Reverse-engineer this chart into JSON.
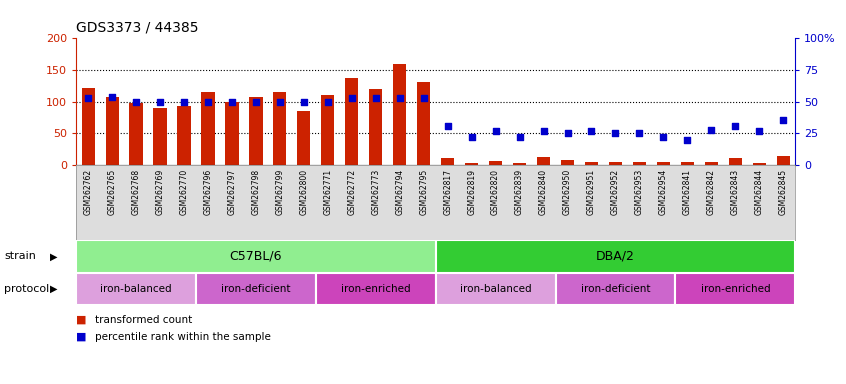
{
  "title": "GDS3373 / 44385",
  "samples": [
    "GSM262762",
    "GSM262765",
    "GSM262768",
    "GSM262769",
    "GSM262770",
    "GSM262796",
    "GSM262797",
    "GSM262798",
    "GSM262799",
    "GSM262800",
    "GSM262771",
    "GSM262772",
    "GSM262773",
    "GSM262794",
    "GSM262795",
    "GSM262817",
    "GSM262819",
    "GSM262820",
    "GSM262839",
    "GSM262840",
    "GSM262950",
    "GSM262951",
    "GSM262952",
    "GSM262953",
    "GSM262954",
    "GSM262841",
    "GSM262842",
    "GSM262843",
    "GSM262844",
    "GSM262845"
  ],
  "red_values": [
    122,
    107,
    98,
    90,
    94,
    115,
    100,
    107,
    116,
    86,
    111,
    138,
    120,
    160,
    131,
    11,
    3,
    6,
    4,
    13,
    8,
    5,
    5,
    5,
    5,
    5,
    5,
    11,
    4,
    14
  ],
  "blue_values": [
    53,
    54,
    50,
    50,
    50,
    50,
    50,
    50,
    50,
    50,
    50,
    53,
    53,
    53,
    53,
    31,
    22,
    27,
    22,
    27,
    25,
    27,
    25,
    25,
    22,
    20,
    28,
    31,
    27,
    36
  ],
  "strain_groups": [
    {
      "label": "C57BL/6",
      "start": 0,
      "end": 15,
      "color": "#90EE90"
    },
    {
      "label": "DBA/2",
      "start": 15,
      "end": 30,
      "color": "#33CC33"
    }
  ],
  "protocol_groups": [
    {
      "label": "iron-balanced",
      "start": 0,
      "end": 5,
      "color": "#DDA0DD"
    },
    {
      "label": "iron-deficient",
      "start": 5,
      "end": 10,
      "color": "#CC66CC"
    },
    {
      "label": "iron-enriched",
      "start": 10,
      "end": 15,
      "color": "#CC44BB"
    },
    {
      "label": "iron-balanced",
      "start": 15,
      "end": 20,
      "color": "#DDA0DD"
    },
    {
      "label": "iron-deficient",
      "start": 20,
      "end": 25,
      "color": "#CC66CC"
    },
    {
      "label": "iron-enriched",
      "start": 25,
      "end": 30,
      "color": "#CC44BB"
    }
  ],
  "bar_color": "#CC2200",
  "dot_color": "#0000CC",
  "left_yticks": [
    0,
    50,
    100,
    150,
    200
  ],
  "right_yticks": [
    0,
    25,
    50,
    75,
    100
  ],
  "right_yticklabels": [
    "0",
    "25",
    "50",
    "75",
    "100%"
  ],
  "gridlines": [
    50,
    100,
    150
  ],
  "legend": [
    {
      "label": "transformed count",
      "color": "#CC2200"
    },
    {
      "label": "percentile rank within the sample",
      "color": "#0000CC"
    }
  ],
  "xtick_bg": "#DDDDDD",
  "strain_label": "strain",
  "protocol_label": "protocol"
}
